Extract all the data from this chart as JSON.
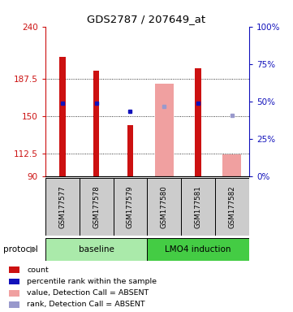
{
  "title": "GDS2787 / 207649_at",
  "samples": [
    "GSM177577",
    "GSM177578",
    "GSM177579",
    "GSM177580",
    "GSM177581",
    "GSM177582"
  ],
  "ylim": [
    90,
    240
  ],
  "yticks": [
    90,
    112.5,
    150,
    187.5,
    240
  ],
  "ytick_labels": [
    "90",
    "112.5",
    "150",
    "187.5",
    "240"
  ],
  "y2lim": [
    0,
    100
  ],
  "y2ticks": [
    0,
    25,
    50,
    75,
    100
  ],
  "y2labels": [
    "0%",
    "25%",
    "50%",
    "75%",
    "100%"
  ],
  "bar_values": [
    210,
    196,
    141,
    null,
    198,
    null
  ],
  "absent_value_bars": [
    null,
    null,
    null,
    183,
    null,
    112
  ],
  "blue_squares_present": [
    163,
    163,
    155,
    null,
    163,
    null
  ],
  "blue_squares_absent_rank": [
    null,
    null,
    null,
    160,
    null,
    151
  ],
  "color_red": "#cc1111",
  "color_pink": "#f0a0a0",
  "color_blue_dark": "#1111bb",
  "color_blue_light": "#9999cc",
  "color_bg_plot": "#ffffff",
  "color_sample_box": "#cccccc",
  "color_protocol_baseline": "#aaeaaa",
  "color_protocol_lmo4": "#44cc44",
  "grid_dotted_color": "#333333",
  "protocols": [
    {
      "label": "baseline",
      "start": 0,
      "end": 3,
      "color": "#aaeaaa"
    },
    {
      "label": "LMO4 induction",
      "start": 3,
      "end": 6,
      "color": "#44cc44"
    }
  ],
  "legend_items": [
    {
      "label": "count",
      "color": "#cc1111"
    },
    {
      "label": "percentile rank within the sample",
      "color": "#1111bb"
    },
    {
      "label": "value, Detection Call = ABSENT",
      "color": "#f0a0a0"
    },
    {
      "label": "rank, Detection Call = ABSENT",
      "color": "#9999cc"
    }
  ],
  "red_bar_width": 0.18,
  "pink_bar_width": 0.55,
  "protocol_label": "protocol"
}
